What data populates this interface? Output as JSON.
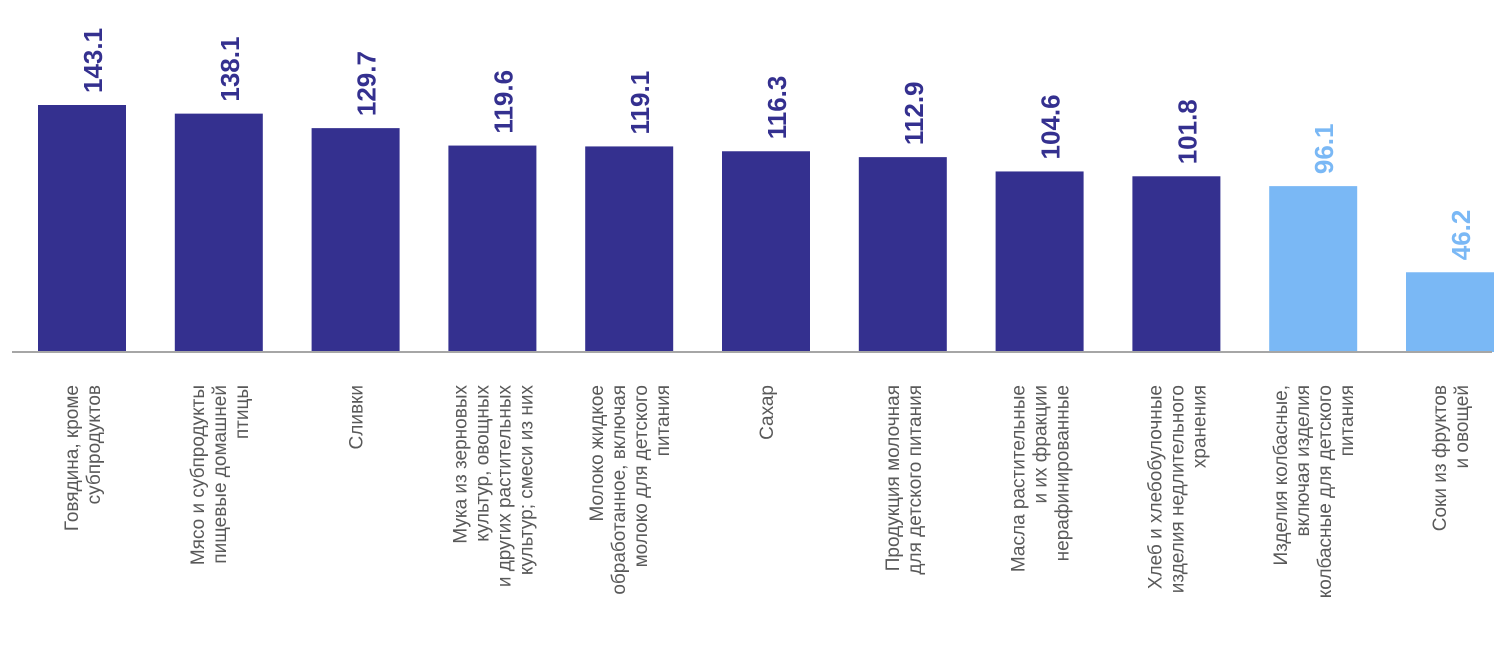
{
  "chart_data": {
    "type": "bar",
    "title": "",
    "xlabel": "",
    "ylabel": "",
    "ylim": [
      0,
      150
    ],
    "grid": false,
    "legend": "none",
    "categories": [
      [
        "Говядина, кроме",
        "субпродуктов"
      ],
      [
        "Мясо и субпродукты",
        "пищевые домашней",
        "птицы"
      ],
      [
        "Сливки"
      ],
      [
        "Мука из зерновых",
        "культур, овощных",
        "и других растительных",
        "культур; смеси из них"
      ],
      [
        "Молоко жидкое",
        "обработанное, включая",
        "молоко для детского",
        "питания"
      ],
      [
        "Сахар"
      ],
      [
        "Продукция молочная",
        "для детского питания"
      ],
      [
        "Масла растительные",
        "и их фракции",
        "нерафинированные"
      ],
      [
        "Хлеб и хлебобулочные",
        "изделия недлительного",
        "хранения"
      ],
      [
        "Изделия колбасные,",
        "включая изделия",
        "колбасные для детского",
        "питания"
      ],
      [
        "Соки из фруктов",
        "и овощей"
      ]
    ],
    "values": [
      143.1,
      138.1,
      129.7,
      119.6,
      119.1,
      116.3,
      112.9,
      104.6,
      101.8,
      96.1,
      46.2
    ],
    "value_labels": [
      "143.1",
      "138.1",
      "129.7",
      "119.6",
      "119.1",
      "116.3",
      "112.9",
      "104.6",
      "101.8",
      "96.1",
      "46.2"
    ],
    "colors": {
      "above_100": "#34308f",
      "below_100": "#7ab8f5",
      "axis": "#a6a6a6",
      "category_text": "#595959"
    }
  }
}
